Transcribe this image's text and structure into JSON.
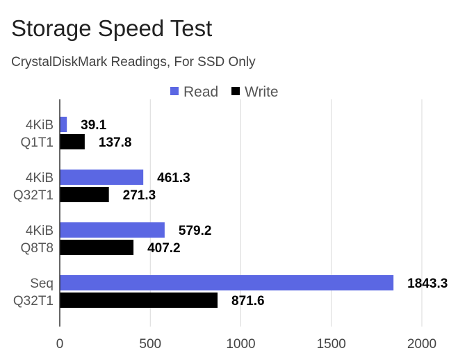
{
  "title": "Storage Speed Test",
  "subtitle": "CrystalDiskMark Readings, For SSD Only",
  "colors": {
    "read": "#5b67e3",
    "write": "#000000",
    "grid": "#d9d9d9",
    "axis": "#333333"
  },
  "chart_data": {
    "type": "bar",
    "orientation": "horizontal",
    "title": "Storage Speed Test",
    "subtitle": "CrystalDiskMark Readings, For SSD Only",
    "categories": [
      [
        "4KiB",
        "Q1T1"
      ],
      [
        "4KiB",
        "Q32T1"
      ],
      [
        "4KiB",
        "Q8T8"
      ],
      [
        "Seq",
        "Q32T1"
      ]
    ],
    "series": [
      {
        "name": "Read",
        "color": "#5b67e3",
        "values": [
          39.1,
          461.3,
          579.2,
          1843.3
        ],
        "labels": [
          "39.1",
          "461.3",
          "579.2",
          "1843.3"
        ]
      },
      {
        "name": "Write",
        "color": "#000000",
        "values": [
          137.8,
          271.3,
          407.2,
          871.6
        ],
        "labels": [
          "137.8",
          "271.3",
          "407.2",
          "871.6"
        ]
      }
    ],
    "xlim": [
      0,
      2000
    ],
    "xticks": [
      "0",
      "500",
      "1000",
      "1500",
      "2000"
    ],
    "xtick_values": [
      0,
      500,
      1000,
      1500,
      2000
    ],
    "grid": true,
    "legend": "top"
  }
}
